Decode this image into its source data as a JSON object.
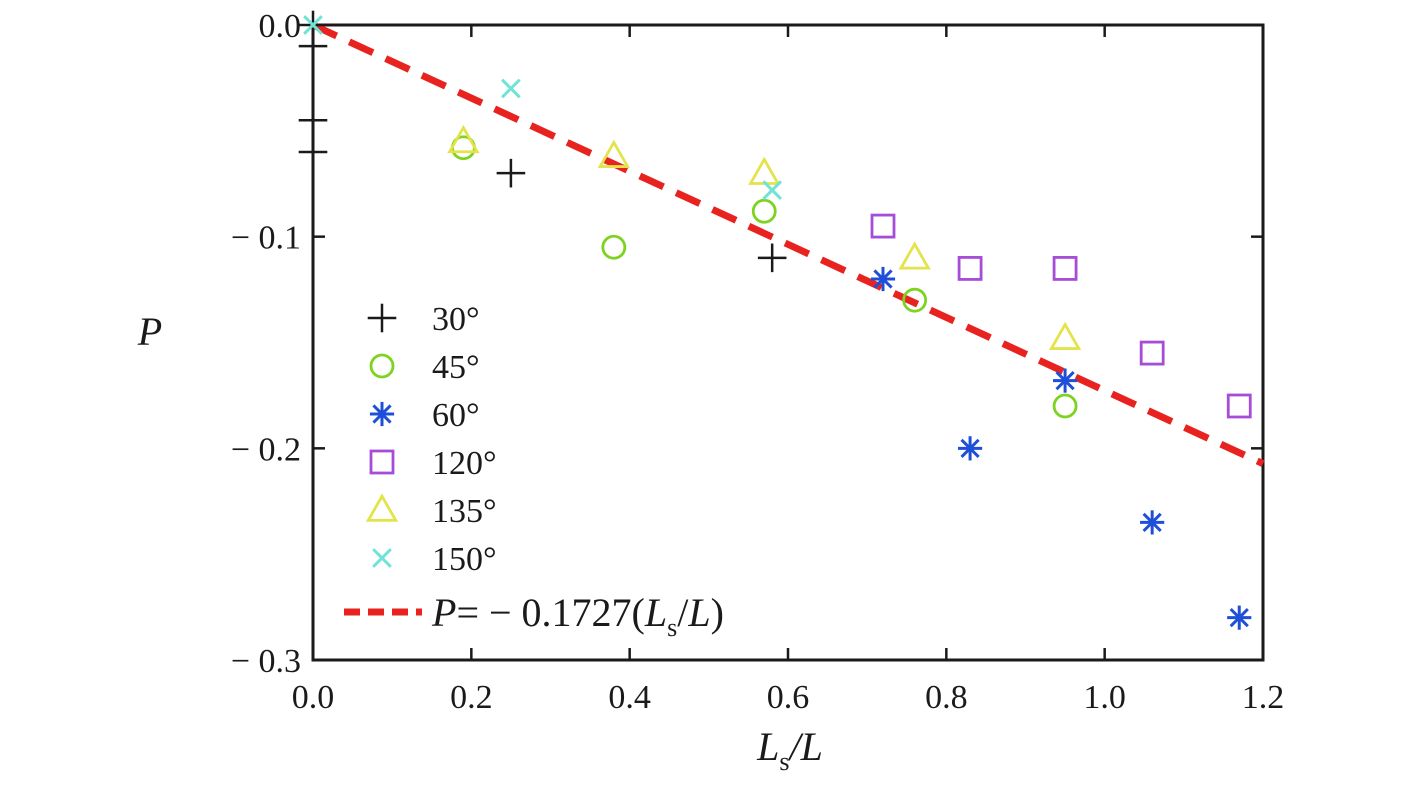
{
  "chart_data": {
    "type": "scatter",
    "xlabel": {
      "main": "L",
      "sub": "s",
      "tail": "/L"
    },
    "ylabel": "P",
    "xlim": [
      0.0,
      1.2
    ],
    "ylim": [
      -0.3,
      0.0
    ],
    "x_ticks": [
      0.0,
      0.2,
      0.4,
      0.6,
      0.8,
      1.0,
      1.2
    ],
    "x_tick_labels": [
      "0.0",
      "0.2",
      "0.4",
      "0.6",
      "0.8",
      "1.0",
      "1.2"
    ],
    "y_ticks": [
      0.0,
      -0.1,
      -0.2,
      -0.3
    ],
    "y_tick_labels": [
      "0.0",
      "− 0.1",
      "− 0.2",
      "− 0.3"
    ],
    "grid": false,
    "legend_position": "bottom-left",
    "series": [
      {
        "name": "30°",
        "marker": "plus",
        "color": "#1a1a1a",
        "points": [
          [
            0.0,
            0.0
          ],
          [
            0.0,
            -0.01
          ],
          [
            0.0,
            -0.045
          ],
          [
            0.0,
            -0.06
          ],
          [
            0.25,
            -0.07
          ],
          [
            0.58,
            -0.11
          ]
        ]
      },
      {
        "name": "45°",
        "marker": "circle",
        "color": "#7ed321",
        "points": [
          [
            0.19,
            -0.058
          ],
          [
            0.38,
            -0.105
          ],
          [
            0.57,
            -0.088
          ],
          [
            0.76,
            -0.13
          ],
          [
            0.95,
            -0.18
          ]
        ]
      },
      {
        "name": "60°",
        "marker": "asterisk",
        "color": "#1f4fd8",
        "points": [
          [
            0.72,
            -0.12
          ],
          [
            0.83,
            -0.2
          ],
          [
            0.95,
            -0.168
          ],
          [
            1.06,
            -0.235
          ],
          [
            1.17,
            -0.28
          ]
        ]
      },
      {
        "name": "120°",
        "marker": "square",
        "color": "#a64dd8",
        "points": [
          [
            0.72,
            -0.095
          ],
          [
            0.83,
            -0.115
          ],
          [
            0.95,
            -0.115
          ],
          [
            1.06,
            -0.155
          ],
          [
            1.17,
            -0.18
          ]
        ]
      },
      {
        "name": "135°",
        "marker": "triangle",
        "color": "#e3e34b",
        "points": [
          [
            0.19,
            -0.055
          ],
          [
            0.38,
            -0.062
          ],
          [
            0.57,
            -0.07
          ],
          [
            0.76,
            -0.11
          ],
          [
            0.95,
            -0.148
          ]
        ]
      },
      {
        "name": "150°",
        "marker": "x",
        "color": "#6fe3d6",
        "points": [
          [
            0.0,
            0.0
          ],
          [
            0.25,
            -0.03
          ],
          [
            0.58,
            -0.078
          ]
        ]
      }
    ],
    "fit_line": {
      "label_parts": [
        "P",
        "= − 0.1727(",
        "L",
        "s",
        "/",
        "L",
        ")"
      ],
      "slope": -0.1727,
      "intercept": 0.0,
      "color": "#e8231f",
      "style": "dashed"
    }
  }
}
